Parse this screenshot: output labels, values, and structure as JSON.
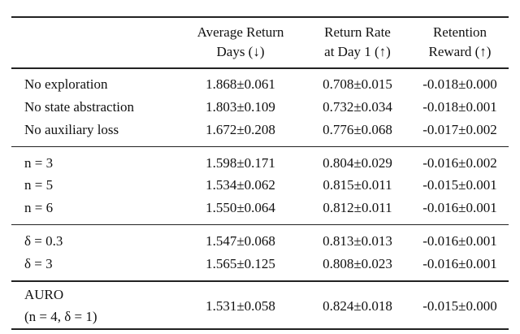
{
  "table": {
    "headers": [
      {
        "line1": "Average Return",
        "line2": "Days (↓)"
      },
      {
        "line1": "Return Rate",
        "line2": "at Day 1 (↑)"
      },
      {
        "line1": "Retention",
        "line2": "Reward (↑)"
      }
    ],
    "groups": [
      [
        {
          "label": "No exploration",
          "values": [
            "1.868±0.061",
            "0.708±0.015",
            "-0.018±0.000"
          ]
        },
        {
          "label": "No state abstraction",
          "values": [
            "1.803±0.109",
            "0.732±0.034",
            "-0.018±0.001"
          ]
        },
        {
          "label": "No auxiliary loss",
          "values": [
            "1.672±0.208",
            "0.776±0.068",
            "-0.017±0.002"
          ]
        }
      ],
      [
        {
          "label": "n = 3",
          "values": [
            "1.598±0.171",
            "0.804±0.029",
            "-0.016±0.002"
          ]
        },
        {
          "label": "n = 5",
          "values": [
            "1.534±0.062",
            "0.815±0.011",
            "-0.015±0.001"
          ]
        },
        {
          "label": "n = 6",
          "values": [
            "1.550±0.064",
            "0.812±0.011",
            "-0.016±0.001"
          ]
        }
      ],
      [
        {
          "label": "δ = 0.3",
          "values": [
            "1.547±0.068",
            "0.813±0.013",
            "-0.016±0.001"
          ]
        },
        {
          "label": "δ = 3",
          "values": [
            "1.565±0.125",
            "0.808±0.023",
            "-0.016±0.001"
          ]
        }
      ]
    ],
    "final": {
      "label_line1": "AURO",
      "label_line2": "(n = 4, δ = 1)",
      "values": [
        "1.531±0.058",
        "0.824±0.018",
        "-0.015±0.000"
      ]
    }
  }
}
